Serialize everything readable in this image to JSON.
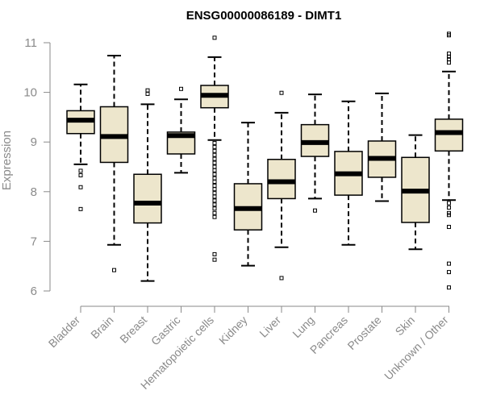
{
  "chart_data": {
    "type": "boxplot",
    "title": "ENSG00000086189 - DIMT1",
    "xlabel": "",
    "ylabel": "Expression",
    "ylim": [
      6,
      11
    ],
    "yticks": [
      6,
      7,
      8,
      9,
      10,
      11
    ],
    "grid": false,
    "legend": "none",
    "box_fill": "#ede6cc",
    "line_color": "#000000",
    "axis_color": "#8a8a8a",
    "categories": [
      "Bladder",
      "Brain",
      "Breast",
      "Gastric",
      "Hematopoietic cells",
      "Kidney",
      "Liver",
      "Lung",
      "Pancreas",
      "Prostate",
      "Skin",
      "Unknown / Other"
    ],
    "boxes": [
      {
        "category": "Bladder",
        "whisker_low": 8.55,
        "q1": 9.17,
        "median": 9.44,
        "q3": 9.63,
        "whisker_high": 10.16,
        "outliers": [
          8.42,
          8.33,
          8.09,
          7.65
        ]
      },
      {
        "category": "Brain",
        "whisker_low": 6.93,
        "q1": 8.59,
        "median": 9.11,
        "q3": 9.71,
        "whisker_high": 10.74,
        "outliers": [
          6.42
        ]
      },
      {
        "category": "Breast",
        "whisker_low": 6.2,
        "q1": 7.37,
        "median": 7.77,
        "q3": 8.35,
        "whisker_high": 9.76,
        "outliers": [
          9.97,
          10.04
        ]
      },
      {
        "category": "Gastric",
        "whisker_low": 8.38,
        "q1": 8.76,
        "median": 9.13,
        "q3": 9.2,
        "whisker_high": 9.86,
        "outliers": [
          10.07
        ]
      },
      {
        "category": "Hematopoietic cells",
        "whisker_low": 9.04,
        "q1": 9.69,
        "median": 9.94,
        "q3": 10.14,
        "whisker_high": 10.71,
        "outliers": [
          11.1,
          8.98,
          8.9,
          8.82,
          8.74,
          8.66,
          8.58,
          8.5,
          8.43,
          8.35,
          8.27,
          8.2,
          8.12,
          8.05,
          7.97,
          7.9,
          7.82,
          7.74,
          7.66,
          7.57,
          7.49,
          6.74,
          6.63
        ]
      },
      {
        "category": "Kidney",
        "whisker_low": 6.51,
        "q1": 7.23,
        "median": 7.66,
        "q3": 8.16,
        "whisker_high": 9.39,
        "outliers": []
      },
      {
        "category": "Liver",
        "whisker_low": 6.88,
        "q1": 7.86,
        "median": 8.2,
        "q3": 8.65,
        "whisker_high": 9.59,
        "outliers": [
          9.99,
          6.26
        ]
      },
      {
        "category": "Lung",
        "whisker_low": 7.86,
        "q1": 8.71,
        "median": 8.99,
        "q3": 9.35,
        "whisker_high": 9.96,
        "outliers": [
          7.62
        ]
      },
      {
        "category": "Pancreas",
        "whisker_low": 6.93,
        "q1": 7.93,
        "median": 8.36,
        "q3": 8.81,
        "whisker_high": 9.82,
        "outliers": []
      },
      {
        "category": "Prostate",
        "whisker_low": 7.81,
        "q1": 8.29,
        "median": 8.67,
        "q3": 9.02,
        "whisker_high": 9.98,
        "outliers": []
      },
      {
        "category": "Skin",
        "whisker_low": 6.84,
        "q1": 7.38,
        "median": 8.01,
        "q3": 8.69,
        "whisker_high": 9.14,
        "outliers": []
      },
      {
        "category": "Unknown / Other",
        "whisker_low": 7.83,
        "q1": 8.82,
        "median": 9.19,
        "q3": 9.46,
        "whisker_high": 10.42,
        "outliers": [
          11.18,
          11.15,
          10.78,
          10.72,
          10.67,
          10.6,
          7.77,
          7.68,
          7.57,
          7.53,
          7.29,
          6.55,
          6.38,
          6.07
        ]
      }
    ]
  }
}
